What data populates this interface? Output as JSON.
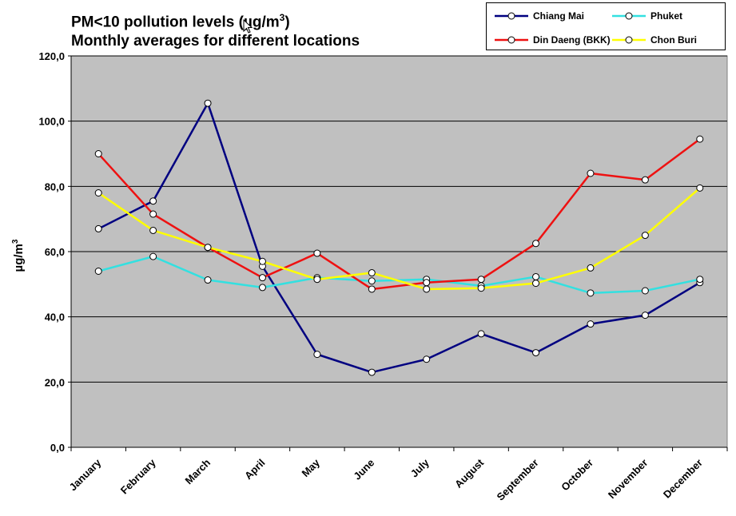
{
  "title": {
    "line1_prefix": "PM<10 pollution levels (µg/m",
    "line1_sup": "3",
    "line1_suffix": ")",
    "line2": "Monthly averages for different locations"
  },
  "chart_data": {
    "type": "line",
    "categories": [
      "January",
      "February",
      "March",
      "April",
      "May",
      "June",
      "July",
      "August",
      "September",
      "October",
      "November",
      "December"
    ],
    "ylabel": "µg/m³",
    "ylabel_base": "µg/m",
    "ylabel_sup": "3",
    "ylim": [
      0,
      120
    ],
    "yticks": [
      "0,0",
      "20,0",
      "40,0",
      "60,0",
      "80,0",
      "100,0",
      "120,0"
    ],
    "ytick_values": [
      0,
      20,
      40,
      60,
      80,
      100,
      120
    ],
    "grid": true,
    "plot_background": "#c0c0c0",
    "legend_position": "top-right",
    "series": [
      {
        "name": "Chiang Mai",
        "color": "#000080",
        "values": [
          67,
          75.5,
          105.5,
          55.5,
          28.5,
          23,
          27,
          34.8,
          29,
          37.8,
          40.5,
          50.5
        ]
      },
      {
        "name": "Phuket",
        "color": "#33e0e0",
        "values": [
          54,
          58.5,
          51.3,
          49,
          52,
          51,
          51.5,
          49.5,
          52.3,
          47.3,
          48,
          51.5
        ]
      },
      {
        "name": "Din Daeng (BKK)",
        "color": "#ee1111",
        "values": [
          90,
          71.5,
          61.3,
          52,
          59.5,
          48.5,
          50.5,
          51.5,
          62.5,
          84,
          82,
          94.5
        ]
      },
      {
        "name": "Chon Buri",
        "color": "#ffff00",
        "values": [
          78,
          66.5,
          61.3,
          57,
          51.5,
          53.5,
          48.5,
          48.8,
          50.3,
          55,
          65,
          79.5
        ]
      }
    ]
  },
  "cursor_icon": "pointer-arrow-icon"
}
